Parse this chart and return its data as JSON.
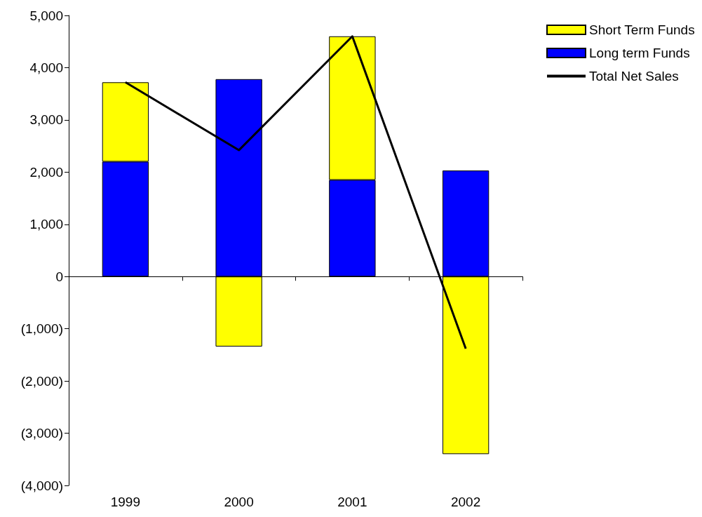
{
  "chart_data": {
    "type": "bar",
    "stacked": true,
    "categories": [
      "1999",
      "2000",
      "2001",
      "2002"
    ],
    "series": [
      {
        "name": "Long term Funds",
        "color": "#0000ff",
        "values": [
          2200,
          3780,
          1850,
          2030
        ]
      },
      {
        "name": "Short Term Funds",
        "color": "#ffff00",
        "values": [
          1520,
          -1340,
          2750,
          -3400
        ]
      },
      {
        "name": "Total Net Sales",
        "type": "line",
        "color": "#000000",
        "values": [
          3720,
          2420,
          4600,
          -1380
        ]
      }
    ],
    "ylim": [
      -4000,
      5000
    ],
    "yticks": [
      {
        "value": -4000,
        "label": "(4,000)"
      },
      {
        "value": -3000,
        "label": "(3,000)"
      },
      {
        "value": -2000,
        "label": "(2,000)"
      },
      {
        "value": -1000,
        "label": "(1,000)"
      },
      0,
      {
        "value": 1000,
        "label": "1,000"
      },
      {
        "value": 2000,
        "label": "2,000"
      },
      {
        "value": 3000,
        "label": "3,000"
      },
      {
        "value": 4000,
        "label": "4,000"
      },
      {
        "value": 5000,
        "label": "5,000"
      }
    ],
    "legend": "top right",
    "marker": "none"
  }
}
